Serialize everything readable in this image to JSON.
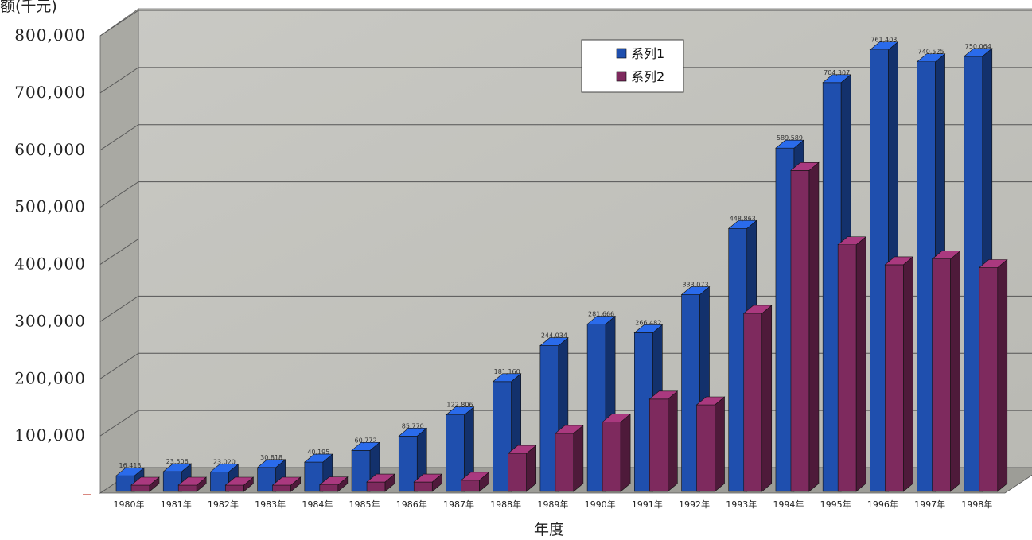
{
  "chart_data": {
    "type": "bar",
    "title": "",
    "ylabel": "额(千元)",
    "xlabel": "年度",
    "ylim": [
      0,
      800000
    ],
    "yticks": [
      100000,
      200000,
      300000,
      400000,
      500000,
      600000,
      700000,
      800000
    ],
    "ytick_labels": [
      "100,000",
      "200,000",
      "300,000",
      "400,000",
      "500,000",
      "600,000",
      "700,000",
      "800,000"
    ],
    "categories": [
      "1980年",
      "1981年",
      "1982年",
      "1983年",
      "1984年",
      "1985年",
      "1986年",
      "1987年",
      "1988年",
      "1989年",
      "1990年",
      "1991年",
      "1992年",
      "1993年",
      "1994年",
      "1995年",
      "1996年",
      "1997年",
      "1998年"
    ],
    "series": [
      {
        "name": "系列1",
        "color": "#1f4fae",
        "values": [
          16413,
          23506,
          23020,
          30818,
          40195,
          60772,
          85770,
          122806,
          181160,
          244034,
          281666,
          266482,
          333073,
          448863,
          589589,
          704307,
          761403,
          740525,
          750064
        ],
        "labels": [
          "16,413",
          "23,506",
          "23,020",
          "30,818",
          "40,195",
          "60,772",
          "85,770",
          "122,806",
          "181,160",
          "244,034",
          "281,666",
          "266,482",
          "333,073",
          "448,863",
          "589,589",
          "704,307",
          "761,403",
          "740,525",
          "750,064"
        ]
      },
      {
        "name": "系列2",
        "color": "#7e2a5e",
        "values": [
          8000,
          9000,
          9000,
          11000,
          20000,
          25000,
          25000,
          28000,
          75000,
          110000,
          130000,
          170000,
          160000,
          320000,
          570000,
          440000,
          405000,
          415000,
          400000
        ]
      }
    ],
    "grid": true,
    "legend_position": "top-right"
  }
}
